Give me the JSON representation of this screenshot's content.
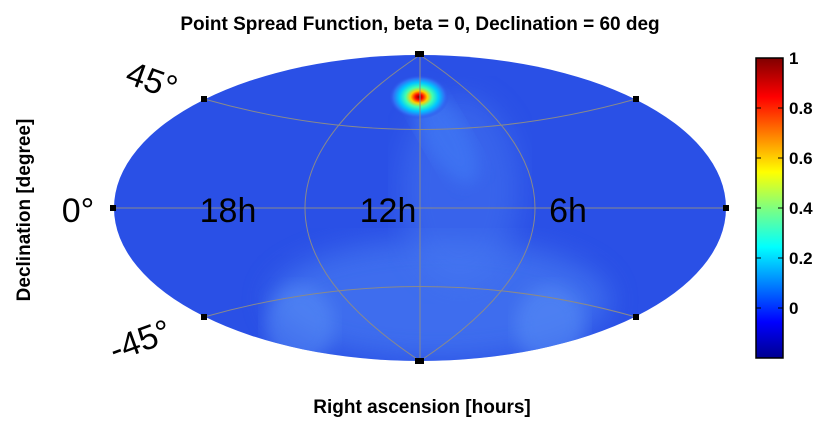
{
  "chart_data": {
    "type": "heatmap",
    "projection": "aitoff-hammer (all-sky ellipse)",
    "title": "Point Spread Function, beta = 0, Declination = 60 deg",
    "xlabel": "Right ascension [hours]",
    "ylabel": "Declination [degree]",
    "ra_labels": [
      "18h",
      "12h",
      "6h"
    ],
    "dec_labels": [
      "45°",
      "0°",
      "-45°"
    ],
    "peak": {
      "ra_hours": 12,
      "dec_deg": 60,
      "value": 1
    },
    "colorbar": {
      "ticks": [
        "1",
        "0.8",
        "0.6",
        "0.4",
        "0.2",
        "0"
      ],
      "tick_values": [
        1,
        0.8,
        0.6,
        0.4,
        0.2,
        0
      ],
      "range": [
        -0.2,
        1
      ],
      "colormap": "jet"
    },
    "background_value": -0.05,
    "grid": true
  },
  "colors": {
    "background": "#ffffff",
    "map_base": "#2a50e6",
    "grid": "#8a8a8a"
  }
}
